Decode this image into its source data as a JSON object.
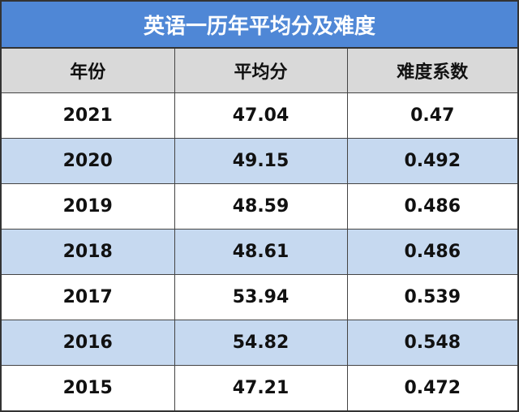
{
  "table": {
    "title": "英语一历年平均分及难度",
    "columns": [
      "年份",
      "平均分",
      "难度系数"
    ],
    "rows": [
      [
        "2021",
        "47.04",
        "0.47"
      ],
      [
        "2020",
        "49.15",
        "0.492"
      ],
      [
        "2019",
        "48.59",
        "0.486"
      ],
      [
        "2018",
        "48.61",
        "0.486"
      ],
      [
        "2017",
        "53.94",
        "0.539"
      ],
      [
        "2016",
        "54.82",
        "0.548"
      ],
      [
        "2015",
        "47.21",
        "0.472"
      ]
    ]
  }
}
